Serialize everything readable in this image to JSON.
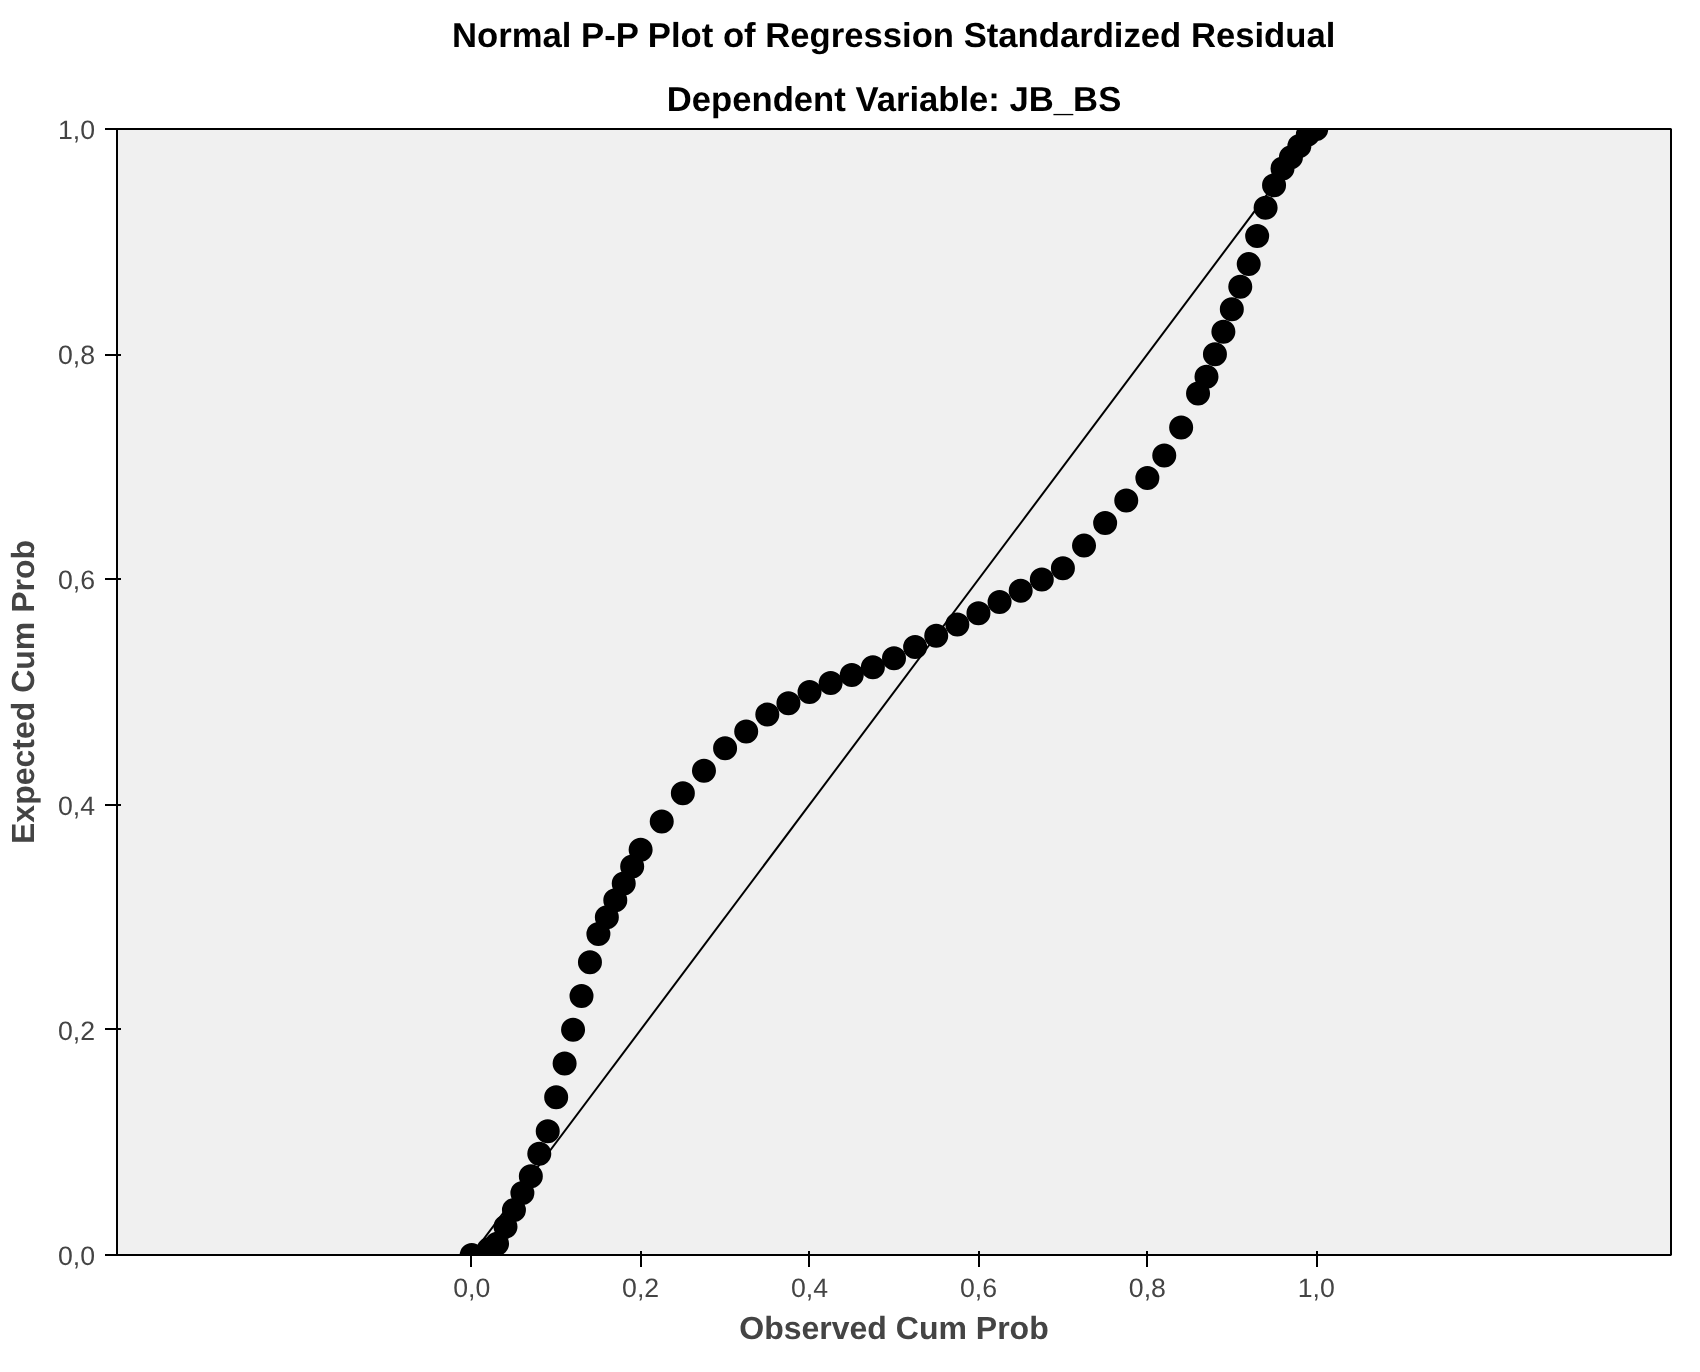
{
  "chart_data": {
    "type": "scatter",
    "title": "Normal P-P Plot of Regression Standardized Residual",
    "subtitle": "Dependent Variable: JB_BS",
    "xlabel": "Observed Cum Prob",
    "ylabel": "Expected Cum Prob",
    "xlim": [
      -0.42,
      1.42
    ],
    "ylim": [
      0,
      1
    ],
    "xticks": [
      {
        "value": 0,
        "label": "0,0"
      },
      {
        "value": 0.2,
        "label": "0,2"
      },
      {
        "value": 0.4,
        "label": "0,4"
      },
      {
        "value": 0.6,
        "label": "0,6"
      },
      {
        "value": 0.8,
        "label": "0,8"
      },
      {
        "value": 1,
        "label": "1,0"
      }
    ],
    "yticks": [
      {
        "value": 0,
        "label": "0,0"
      },
      {
        "value": 0.2,
        "label": "0,2"
      },
      {
        "value": 0.4,
        "label": "0,4"
      },
      {
        "value": 0.6,
        "label": "0,6"
      },
      {
        "value": 0.8,
        "label": "0,8"
      },
      {
        "value": 1,
        "label": "1,0"
      }
    ],
    "grid": false,
    "series": [
      {
        "type": "line",
        "color": "#000000",
        "x": [
          0,
          1
        ],
        "values": [
          0,
          1
        ]
      },
      {
        "marker": "circle",
        "color": "#000000",
        "x": [
          0.0,
          0.02,
          0.03,
          0.04,
          0.05,
          0.06,
          0.07,
          0.08,
          0.09,
          0.1,
          0.11,
          0.12,
          0.13,
          0.14,
          0.15,
          0.16,
          0.17,
          0.18,
          0.19,
          0.2,
          0.225,
          0.25,
          0.275,
          0.3,
          0.325,
          0.35,
          0.375,
          0.4,
          0.425,
          0.45,
          0.475,
          0.5,
          0.525,
          0.55,
          0.575,
          0.6,
          0.625,
          0.65,
          0.675,
          0.7,
          0.725,
          0.75,
          0.775,
          0.8,
          0.82,
          0.84,
          0.86,
          0.87,
          0.88,
          0.89,
          0.9,
          0.91,
          0.92,
          0.93,
          0.94,
          0.95,
          0.96,
          0.97,
          0.98,
          0.99,
          1.0
        ],
        "values": [
          0.0,
          0.005,
          0.01,
          0.025,
          0.04,
          0.055,
          0.07,
          0.09,
          0.11,
          0.14,
          0.17,
          0.2,
          0.23,
          0.26,
          0.285,
          0.3,
          0.315,
          0.33,
          0.345,
          0.36,
          0.385,
          0.41,
          0.43,
          0.45,
          0.465,
          0.48,
          0.49,
          0.5,
          0.508,
          0.515,
          0.522,
          0.53,
          0.54,
          0.55,
          0.56,
          0.57,
          0.58,
          0.59,
          0.6,
          0.61,
          0.63,
          0.65,
          0.67,
          0.69,
          0.71,
          0.735,
          0.765,
          0.78,
          0.8,
          0.82,
          0.84,
          0.86,
          0.88,
          0.905,
          0.93,
          0.95,
          0.965,
          0.975,
          0.985,
          0.995,
          1.0
        ]
      }
    ]
  }
}
